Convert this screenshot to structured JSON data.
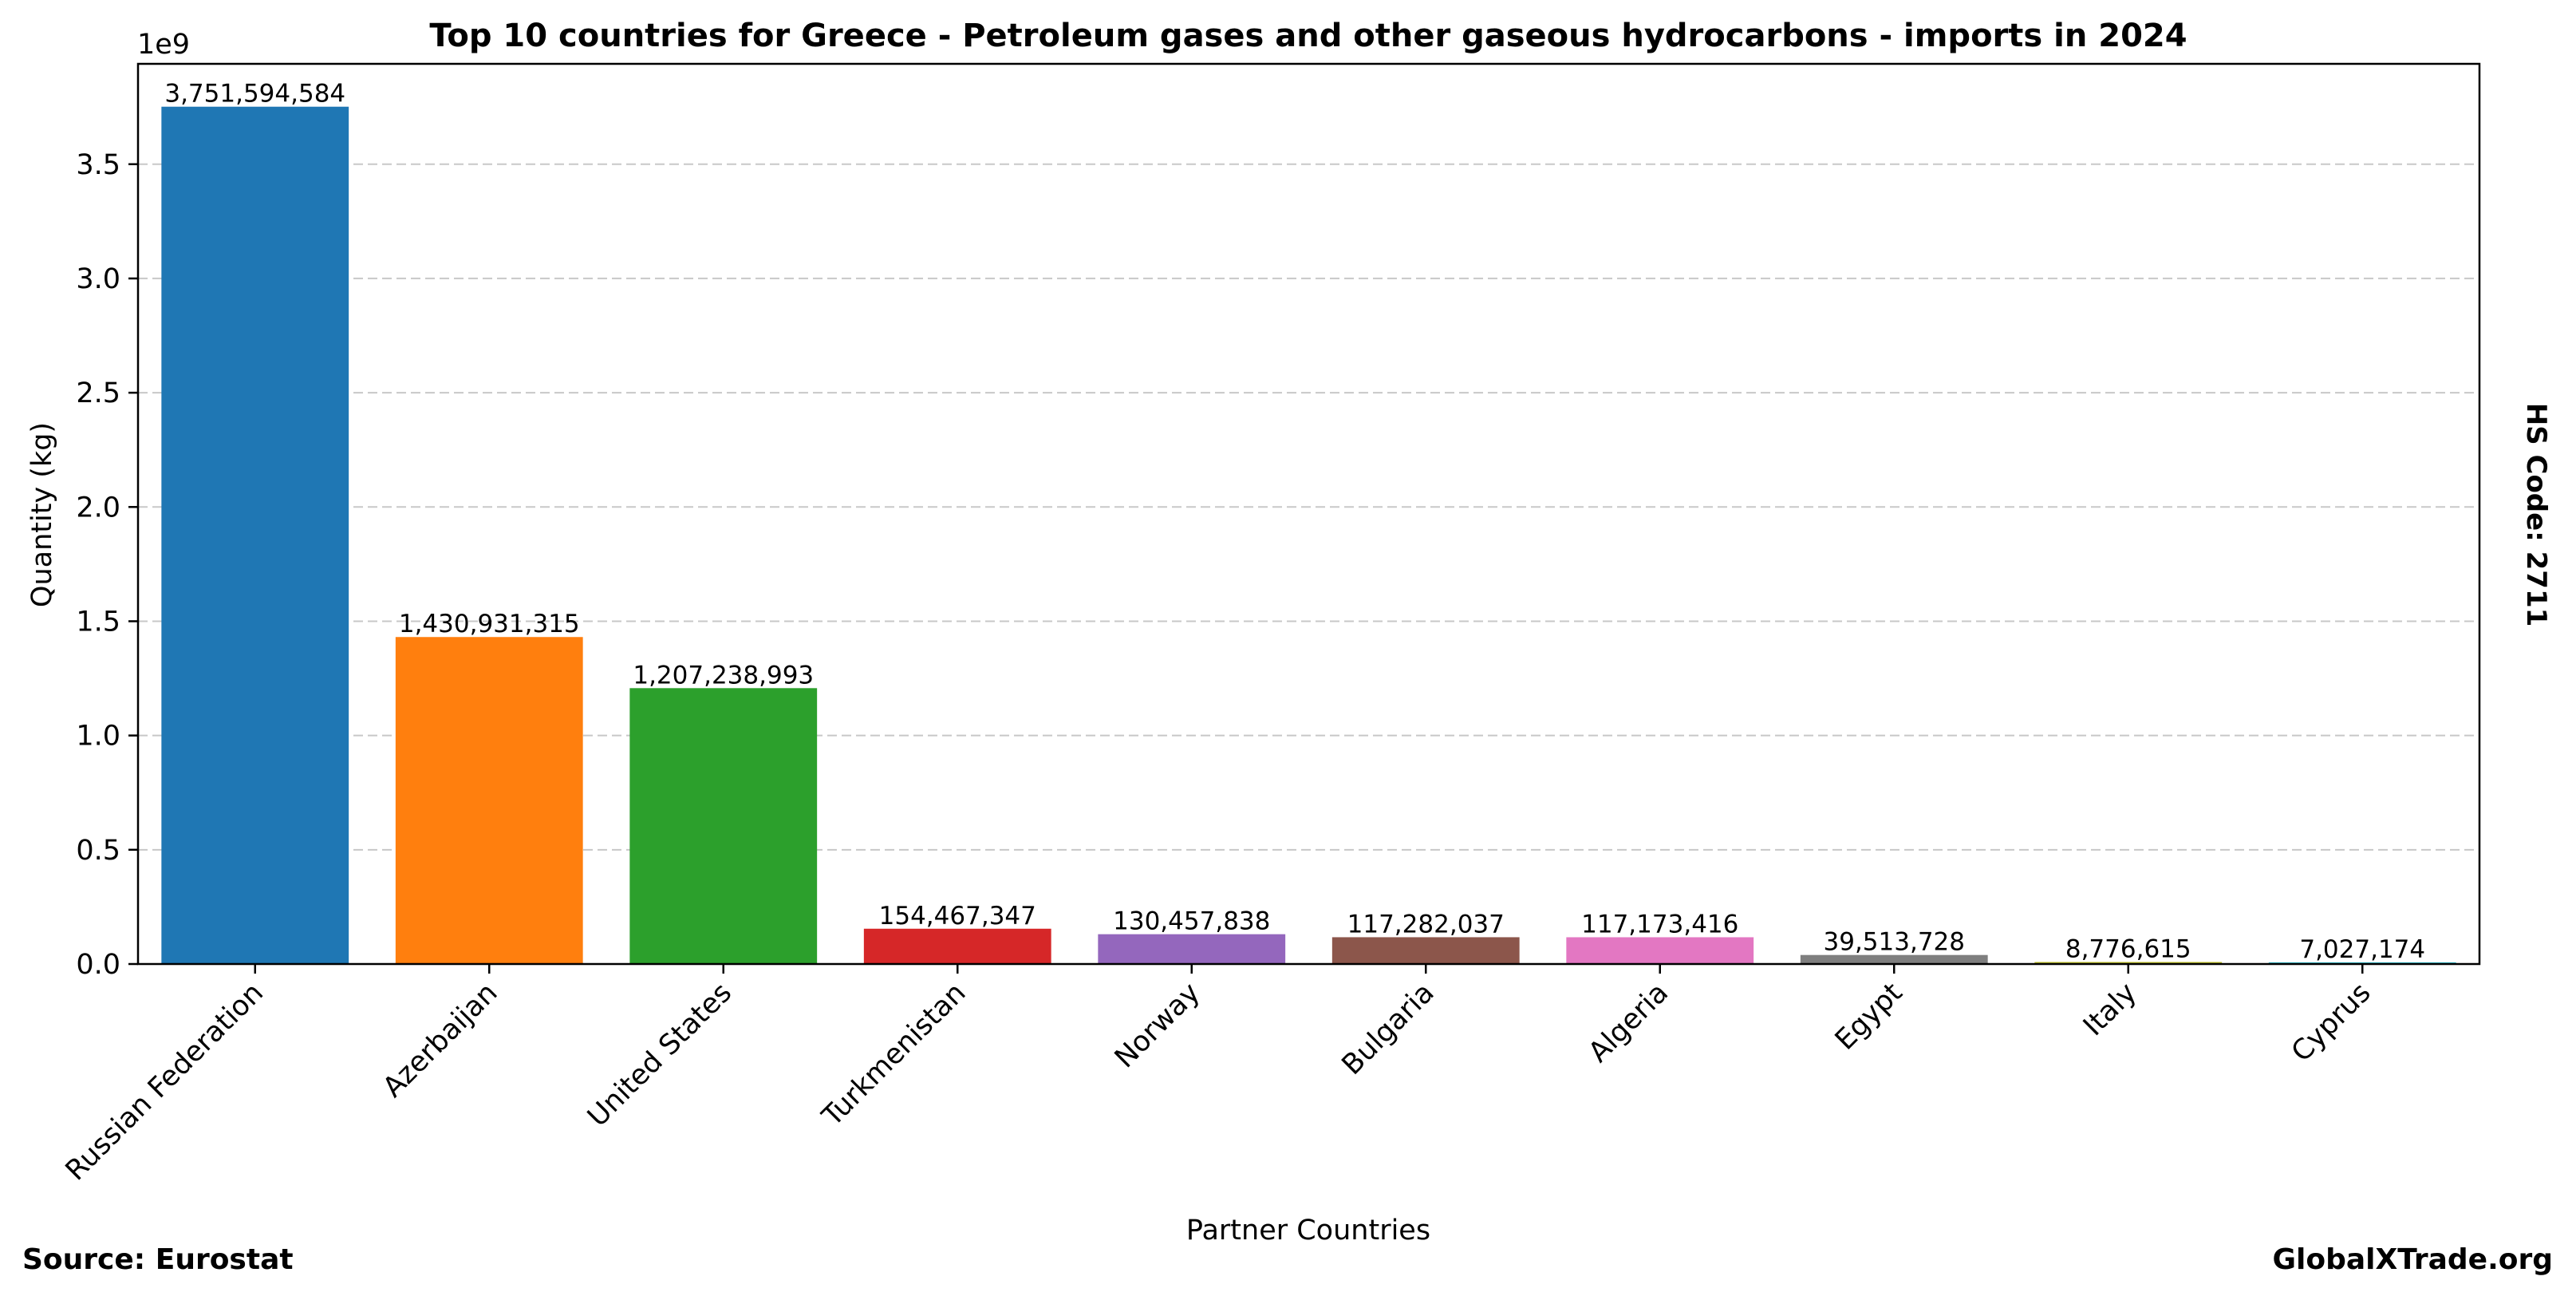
{
  "chart_data": {
    "type": "bar",
    "title": "Top 10 countries for Greece - Petroleum gases and other gaseous hydrocarbons - imports in 2024",
    "xlabel": "Partner Countries",
    "ylabel": "Quantity (kg)",
    "y_scale_label": "1e9",
    "categories": [
      "Russian Federation",
      "Azerbaijan",
      "United States",
      "Turkmenistan",
      "Norway",
      "Bulgaria",
      "Algeria",
      "Egypt",
      "Italy",
      "Cyprus"
    ],
    "values": [
      3751594584,
      1430931315,
      1207238993,
      154467347,
      130457838,
      117282037,
      117173416,
      39513728,
      8776615,
      7027174
    ],
    "value_labels": [
      "3,751,594,584",
      "1,430,931,315",
      "1,207,238,993",
      "154,467,347",
      "130,457,838",
      "117,282,037",
      "117,173,416",
      "39,513,728",
      "8,776,615",
      "7,027,174"
    ],
    "colors": [
      "#1f77b4",
      "#ff7f0e",
      "#2ca02c",
      "#d62728",
      "#9467bd",
      "#8c564b",
      "#e377c2",
      "#7f7f7f",
      "#bcbd22",
      "#17becf"
    ],
    "ylim": [
      0,
      3939174313
    ],
    "y_ticks": [
      0,
      500000000,
      1000000000,
      1500000000,
      2000000000,
      2500000000,
      3000000000,
      3500000000
    ],
    "y_tick_labels": [
      "0.0",
      "0.5",
      "1.0",
      "1.5",
      "2.0",
      "2.5",
      "3.0",
      "3.5"
    ],
    "grid": "y-dashed",
    "side_note": "HS Code: 2711"
  },
  "footer": {
    "source": "Source: Eurostat",
    "site": "GlobalXTrade.org"
  }
}
